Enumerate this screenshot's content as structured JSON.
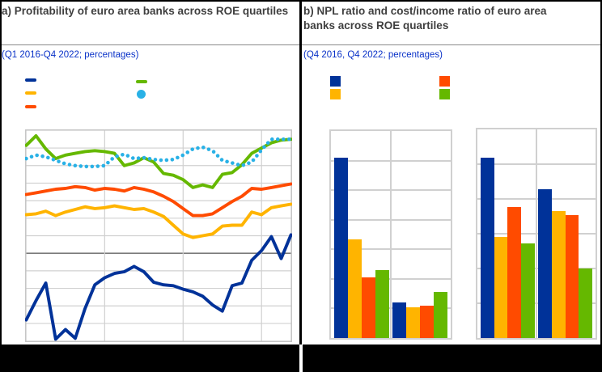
{
  "page": {
    "background": "#ffffff",
    "frame_color": "#000000",
    "grid_color": "#d0d0d0",
    "zero_line_color": "#7a7a7a"
  },
  "panel_a": {
    "title": "a) Profitability of euro area banks across ROE quartiles",
    "subtitle": "(Q1 2016-Q4 2022; percentages)",
    "legend": [
      {
        "marker": "line",
        "color": "#003299",
        "label": ""
      },
      {
        "marker": "line",
        "color": "#FFB400",
        "label": ""
      },
      {
        "marker": "line",
        "color": "#FF4B00",
        "label": ""
      },
      {
        "marker": "line",
        "color": "#65B800",
        "label": ""
      },
      {
        "marker": "dot",
        "color": "#29B1E6",
        "label": ""
      }
    ]
  },
  "panel_b": {
    "title": "b) NPL ratio and cost/income ratio of euro area banks across ROE quartiles",
    "subtitle": "(Q4 2016, Q4 2022; percentages)",
    "legend": [
      {
        "marker": "square",
        "color": "#003299",
        "label": ""
      },
      {
        "marker": "square",
        "color": "#FFB400",
        "label": ""
      },
      {
        "marker": "square",
        "color": "#FF4B00",
        "label": ""
      },
      {
        "marker": "square",
        "color": "#65B800",
        "label": ""
      }
    ]
  },
  "chart_data": [
    {
      "id": "roe-quartiles-lines",
      "type": "line",
      "title": "a) Profitability of euro area banks across ROE quartiles",
      "subtitle": "(Q1 2016-Q4 2022; percentages)",
      "x_range": [
        "Q1 2016",
        "Q4 2022"
      ],
      "x_points": 28,
      "ylim": [
        -10,
        14
      ],
      "y_gridline_step": 2,
      "zero_line": true,
      "x_gridlines_at_point": [
        8,
        16,
        24
      ],
      "axis_tick_labels_visible": false,
      "legend_labels_visible": false,
      "series": [
        {
          "name": "line-dark-blue",
          "color": "#003299",
          "style": "solid",
          "values": [
            -7.6,
            -5.4,
            -3.4,
            -9.8,
            -8.7,
            -9.7,
            -6.3,
            -3.6,
            -2.8,
            -2.3,
            -2.1,
            -1.5,
            -2.1,
            -3.3,
            -3.6,
            -3.7,
            -4.1,
            -4.4,
            -4.9,
            -5.9,
            -6.6,
            -3.7,
            -3.4,
            -0.8,
            0.3,
            1.9,
            -0.6,
            2.1
          ]
        },
        {
          "name": "line-yellow",
          "color": "#FFB400",
          "style": "solid",
          "values": [
            4.4,
            4.5,
            4.8,
            4.3,
            4.7,
            5.0,
            5.3,
            5.1,
            5.2,
            5.4,
            5.2,
            5.0,
            5.1,
            4.7,
            4.2,
            3.2,
            2.2,
            1.8,
            2.0,
            2.2,
            3.1,
            3.2,
            3.2,
            4.7,
            4.4,
            5.2,
            5.4,
            5.6
          ]
        },
        {
          "name": "line-orange",
          "color": "#FF4B00",
          "style": "solid",
          "values": [
            6.7,
            6.9,
            7.1,
            7.3,
            7.4,
            7.6,
            7.5,
            7.2,
            7.4,
            7.3,
            7.1,
            7.5,
            7.3,
            7.0,
            6.5,
            5.9,
            5.1,
            4.3,
            4.3,
            4.5,
            5.2,
            5.9,
            6.5,
            7.4,
            7.3,
            7.5,
            7.7,
            7.9
          ]
        },
        {
          "name": "line-green",
          "color": "#65B800",
          "style": "solid",
          "values": [
            12.3,
            13.4,
            11.9,
            10.8,
            11.2,
            11.4,
            11.6,
            11.7,
            11.6,
            11.4,
            10.0,
            10.3,
            10.9,
            10.4,
            9.1,
            8.9,
            8.4,
            7.5,
            7.8,
            7.5,
            9.0,
            9.2,
            10.1,
            11.4,
            12.0,
            12.6,
            12.9,
            13.0
          ]
        },
        {
          "name": "line-light-blue-dotted",
          "color": "#29B1E6",
          "style": "dotted",
          "values": [
            10.8,
            11.2,
            11.0,
            10.6,
            10.2,
            10.0,
            9.9,
            9.9,
            10.0,
            11.0,
            11.3,
            10.8,
            10.9,
            10.7,
            10.6,
            10.7,
            11.2,
            11.9,
            12.1,
            11.7,
            10.6,
            10.3,
            10.0,
            10.4,
            11.8,
            13.0,
            13.0,
            13.0
          ]
        }
      ]
    },
    {
      "id": "npl-ratio-bars",
      "type": "bar",
      "title": "NPL ratio across ROE quartiles",
      "categories": [
        "",
        ""
      ],
      "category_labels_visible": false,
      "ylim": [
        0,
        14
      ],
      "y_gridline_step": 2,
      "series": [
        {
          "name": "bars-dark-blue",
          "color": "#003299",
          "values": [
            12.2,
            2.4
          ]
        },
        {
          "name": "bars-yellow",
          "color": "#FFB400",
          "values": [
            6.7,
            2.1
          ]
        },
        {
          "name": "bars-orange",
          "color": "#FF4B00",
          "values": [
            4.1,
            2.2
          ]
        },
        {
          "name": "bars-green",
          "color": "#65B800",
          "values": [
            4.6,
            3.1
          ]
        }
      ]
    },
    {
      "id": "cost-income-ratio-bars",
      "type": "bar",
      "title": "Cost/income ratio across ROE quartiles",
      "categories": [
        "",
        ""
      ],
      "category_labels_visible": false,
      "ylim": [
        0,
        120
      ],
      "y_gridline_step": 20,
      "series": [
        {
          "name": "bars-dark-blue",
          "color": "#003299",
          "values": [
            103.5,
            85.5
          ]
        },
        {
          "name": "bars-yellow",
          "color": "#FFB400",
          "values": [
            58.0,
            73.0
          ]
        },
        {
          "name": "bars-orange",
          "color": "#FF4B00",
          "values": [
            75.5,
            70.5
          ]
        },
        {
          "name": "bars-green",
          "color": "#65B800",
          "values": [
            54.5,
            40.0
          ]
        }
      ]
    }
  ]
}
